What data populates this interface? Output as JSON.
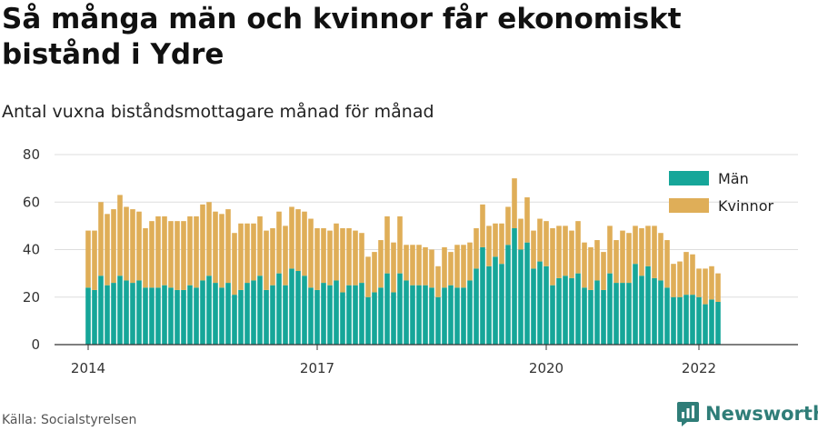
{
  "title": "Så många män och kvinnor får ekonomiskt bistånd i Ydre",
  "subtitle": "Antal vuxna biståndsmottagare månad för månad",
  "source": "Källa: Socialstyrelsen",
  "brand": "Newsworthy",
  "colors": {
    "men": "#16a699",
    "women": "#dfae58",
    "grid": "#dddddd",
    "brand": "#2f7d78"
  },
  "chart_data": {
    "type": "bar",
    "stacked": true,
    "x_start": "2014-01",
    "x_ticks": [
      "2014",
      "2017",
      "2020",
      "2022"
    ],
    "y_ticks": [
      0,
      20,
      40,
      60,
      80
    ],
    "ylim": [
      0,
      80
    ],
    "grid": true,
    "legend": "top-right",
    "series": [
      {
        "name": "Män",
        "values": [
          24,
          23,
          29,
          25,
          26,
          29,
          27,
          26,
          27,
          24,
          24,
          24,
          25,
          24,
          23,
          23,
          25,
          24,
          27,
          29,
          26,
          24,
          26,
          21,
          23,
          26,
          27,
          29,
          23,
          25,
          30,
          25,
          32,
          31,
          29,
          24,
          23,
          26,
          25,
          27,
          22,
          25,
          25,
          26,
          20,
          22,
          24,
          30,
          22,
          30,
          27,
          25,
          25,
          25,
          24,
          20,
          24,
          25,
          24,
          24,
          27,
          32,
          41,
          33,
          37,
          34,
          42,
          49,
          40,
          43,
          32,
          35,
          33,
          25,
          28,
          29,
          28,
          30,
          24,
          23,
          27,
          23,
          30,
          26,
          26,
          26,
          34,
          29,
          33,
          28,
          27,
          24,
          20,
          20,
          21,
          21,
          20,
          17,
          19,
          18
        ]
      },
      {
        "name": "Kvinnor",
        "values": [
          24,
          25,
          31,
          30,
          31,
          34,
          31,
          31,
          29,
          25,
          28,
          30,
          29,
          28,
          29,
          29,
          29,
          30,
          32,
          31,
          30,
          31,
          31,
          26,
          28,
          25,
          24,
          25,
          25,
          24,
          26,
          25,
          26,
          26,
          27,
          29,
          26,
          23,
          23,
          24,
          27,
          24,
          23,
          21,
          17,
          17,
          20,
          24,
          21,
          24,
          15,
          17,
          17,
          16,
          16,
          13,
          17,
          14,
          18,
          18,
          16,
          17,
          18,
          17,
          14,
          17,
          16,
          21,
          13,
          19,
          16,
          18,
          19,
          24,
          22,
          21,
          20,
          22,
          19,
          18,
          17,
          16,
          20,
          18,
          22,
          21,
          16,
          20,
          17,
          22,
          20,
          20,
          14,
          15,
          18,
          17,
          12,
          15,
          14,
          12
        ]
      }
    ]
  }
}
